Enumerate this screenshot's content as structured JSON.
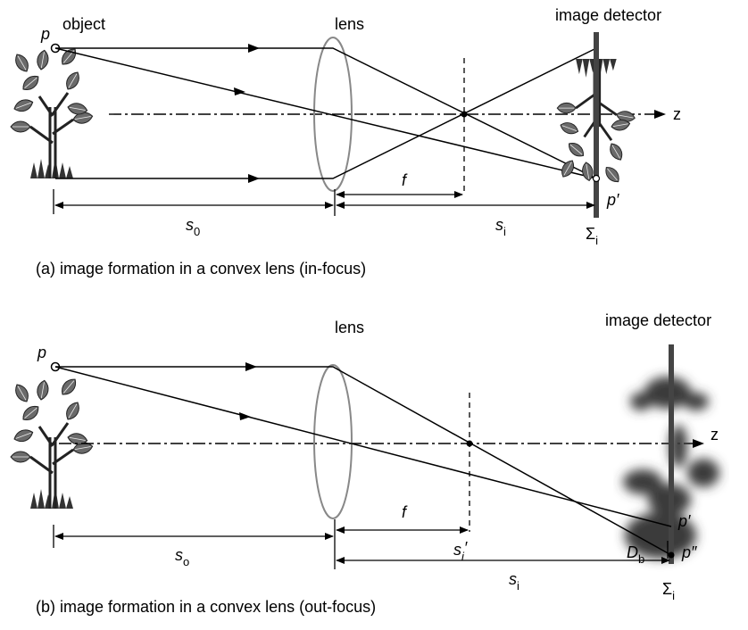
{
  "panel_a": {
    "caption": "(a) image formation in a convex lens (in-focus)",
    "object_label": "object",
    "point_label": "p",
    "lens_label": "lens",
    "detector_label": "image detector",
    "axis_label": "z",
    "focal_label": "f",
    "object_distance_label": "s",
    "object_distance_sub": "0",
    "image_distance_label": "s",
    "image_distance_sub": "i",
    "image_point_label": "p′",
    "plane_label": "Σ",
    "plane_sub": "i"
  },
  "panel_b": {
    "caption": "(b) image formation in a convex lens (out-focus)",
    "point_label": "p",
    "lens_label": "lens",
    "detector_label": "image detector",
    "axis_label": "z",
    "focal_label": "f",
    "object_distance_label": "s",
    "object_distance_sub": "o",
    "focus_distance_label": "s",
    "focus_distance_sub": "i",
    "focus_distance_prime": "′",
    "image_distance_label": "s",
    "image_distance_sub": "i",
    "blur_label": "D",
    "blur_sub": "b",
    "image_point_label": "p′",
    "image_point2_label": "p″",
    "plane_label": "Σ",
    "plane_sub": "i"
  },
  "colors": {
    "ray": "#000000",
    "lens": "#888888",
    "detector": "#444444",
    "plant_leaf": "#6a6a6a"
  }
}
